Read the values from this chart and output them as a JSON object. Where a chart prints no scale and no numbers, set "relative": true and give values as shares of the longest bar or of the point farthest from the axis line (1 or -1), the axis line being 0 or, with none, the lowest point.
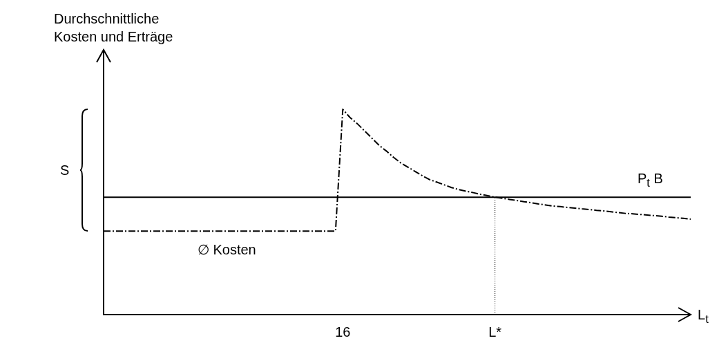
{
  "chart_data": {
    "type": "line",
    "relative": true,
    "ylabel": "Durchschnittliche\nKosten und Erträge",
    "xlabel": "L$_{t}$",
    "grid": false,
    "legend": false,
    "marker": "none",
    "annotations": [
      "S"
    ],
    "categories": [
      null,
      null,
      null,
      null,
      null,
      null,
      null,
      null,
      null,
      null,
      null,
      null,
      null,
      null,
      null,
      null,
      null,
      null,
      null,
      null,
      null,
      null,
      null,
      null,
      null,
      null,
      null,
      null,
      null,
      null,
      null,
      null,
      null,
      "16",
      null,
      null,
      null,
      null,
      null,
      null,
      null,
      null,
      null,
      null,
      null,
      null,
      null,
      null,
      null,
      null,
      null,
      null,
      null,
      null,
      "L*",
      null,
      null,
      null,
      null,
      null,
      null,
      null,
      null,
      null,
      null,
      null,
      null,
      null,
      null,
      null,
      null,
      null,
      null,
      null,
      null,
      null,
      null,
      null,
      null,
      null,
      null,
      null
    ],
    "ref_lines": [
      {
        "axis": "x",
        "value": "L*",
        "line_style": "dotted",
        "color": "#000000"
      }
    ],
    "series": [
      {
        "name": "∅ Kosten",
        "color": "#000000",
        "line_style": "dashed",
        "values": [
          0.407,
          0.407,
          0.407,
          0.407,
          0.407,
          0.407,
          0.407,
          0.407,
          0.407,
          0.407,
          0.407,
          0.407,
          0.407,
          0.407,
          0.407,
          0.407,
          0.407,
          0.407,
          0.407,
          0.407,
          0.407,
          0.407,
          0.407,
          0.407,
          0.407,
          0.407,
          0.407,
          0.407,
          0.407,
          0.407,
          0.407,
          0.407,
          0.407,
          1,
          0.96,
          0.93,
          0.895,
          0.86,
          0.825,
          0.797,
          0.766,
          0.739,
          0.718,
          0.697,
          0.676,
          0.657,
          0.645,
          0.632,
          0.619,
          0.609,
          0.601,
          0.594,
          0.586,
          0.579,
          0.572,
          0.567,
          0.561,
          0.556,
          0.55,
          0.545,
          0.539,
          0.534,
          0.529,
          0.526,
          0.522,
          0.519,
          0.515,
          0.512,
          0.508,
          0.505,
          0.501,
          0.497,
          0.493,
          0.491,
          0.488,
          0.485,
          0.482,
          0.479,
          0.475,
          0.472,
          0.469,
          0.465
        ]
      },
      {
        "name": "P$_{t}$ B",
        "color": "#000000",
        "line_style": "solid",
        "values": [
          0.572,
          0.572,
          0.572,
          0.572,
          0.572,
          0.572,
          0.572,
          0.572,
          0.572,
          0.572,
          0.572,
          0.572,
          0.572,
          0.572,
          0.572,
          0.572,
          0.572,
          0.572,
          0.572,
          0.572,
          0.572,
          0.572,
          0.572,
          0.572,
          0.572,
          0.572,
          0.572,
          0.572,
          0.572,
          0.572,
          0.572,
          0.572,
          0.572,
          0.572,
          0.572,
          0.572,
          0.572,
          0.572,
          0.572,
          0.572,
          0.572,
          0.572,
          0.572,
          0.572,
          0.572,
          0.572,
          0.572,
          0.572,
          0.572,
          0.572,
          0.572,
          0.572,
          0.572,
          0.572,
          0.572,
          0.572,
          0.572,
          0.572,
          0.572,
          0.572,
          0.572,
          0.572,
          0.572,
          0.572,
          0.572,
          0.572,
          0.572,
          0.572,
          0.572,
          0.572,
          0.572,
          0.572,
          0.572,
          0.572,
          0.572,
          0.572,
          0.572,
          0.572,
          0.572,
          0.572,
          0.572,
          0.572
        ]
      }
    ]
  }
}
